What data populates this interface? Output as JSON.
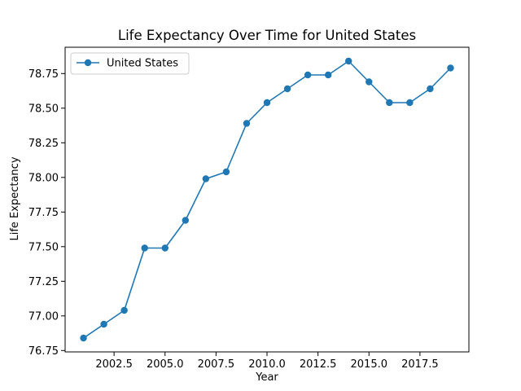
{
  "chart_data": {
    "type": "line",
    "title": "Life Expectancy Over Time for United States",
    "xlabel": "Year",
    "ylabel": "Life Expectancy",
    "xlim": [
      2000.1,
      2019.9
    ],
    "ylim": [
      76.74,
      78.94
    ],
    "xticks": [
      2002.5,
      2005.0,
      2007.5,
      2010.0,
      2012.5,
      2015.0,
      2017.5
    ],
    "xtick_labels": [
      "2002.5",
      "2005.0",
      "2007.5",
      "2010.0",
      "2012.5",
      "2015.0",
      "2017.5"
    ],
    "yticks": [
      76.75,
      77.0,
      77.25,
      77.5,
      77.75,
      78.0,
      78.25,
      78.5,
      78.75
    ],
    "ytick_labels": [
      "76.75",
      "77.00",
      "77.25",
      "77.50",
      "77.75",
      "78.00",
      "78.25",
      "78.50",
      "78.75"
    ],
    "grid": false,
    "legend_position": "upper-left",
    "series": [
      {
        "name": "United States",
        "color": "#1f77b4",
        "marker": "circle",
        "x": [
          2001,
          2002,
          2003,
          2004,
          2005,
          2006,
          2007,
          2008,
          2009,
          2010,
          2011,
          2012,
          2013,
          2014,
          2015,
          2016,
          2017,
          2018,
          2019
        ],
        "y": [
          76.84,
          76.94,
          77.04,
          77.49,
          77.49,
          77.69,
          77.99,
          78.04,
          78.39,
          78.54,
          78.64,
          78.74,
          78.74,
          78.84,
          78.69,
          78.54,
          78.54,
          78.64,
          78.79
        ]
      }
    ]
  }
}
